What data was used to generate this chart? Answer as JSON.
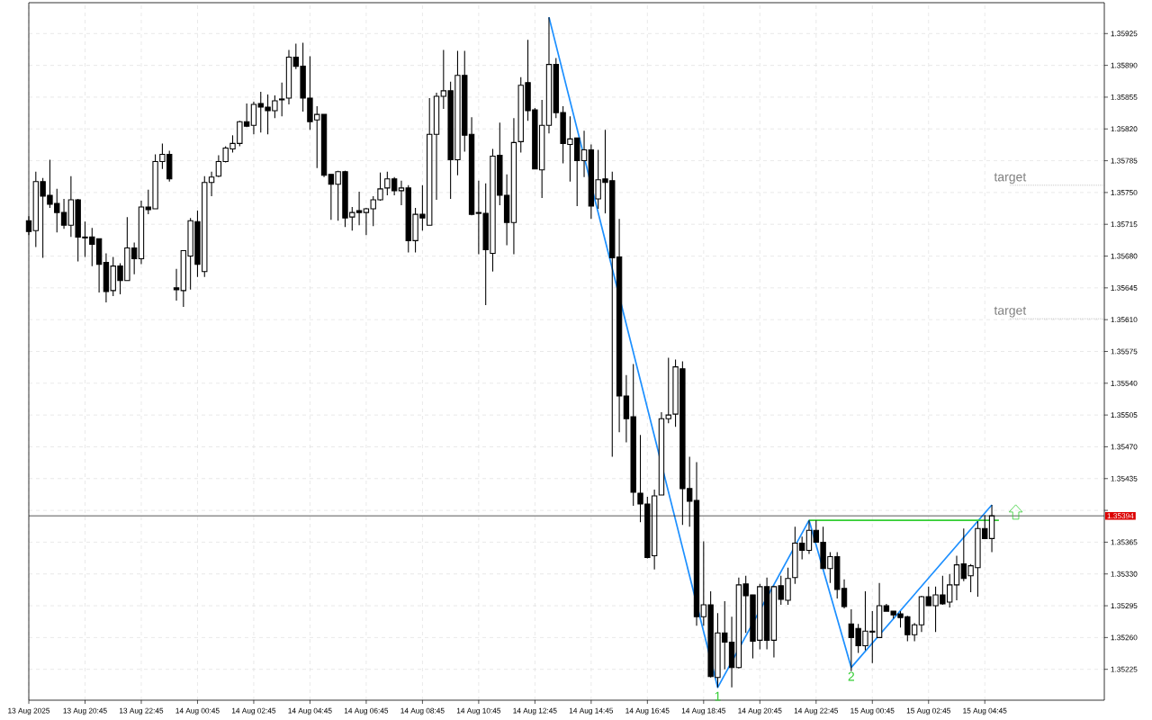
{
  "chart_data": {
    "type": "candlestick",
    "xlim": [
      "2025-08-13T18:45",
      "2025-08-15T09:00"
    ],
    "ylim": [
      1.35191,
      1.35959
    ],
    "grid": true,
    "xticks": [
      {
        "value": "2025-08-13T18:45",
        "label": "13 Aug 2025"
      },
      {
        "value": "2025-08-13T20:45",
        "label": "13 Aug 20:45"
      },
      {
        "value": "2025-08-13T22:45",
        "label": "13 Aug 22:45"
      },
      {
        "value": "2025-08-14T00:45",
        "label": "14 Aug 00:45"
      },
      {
        "value": "2025-08-14T02:45",
        "label": "14 Aug 02:45"
      },
      {
        "value": "2025-08-14T04:45",
        "label": "14 Aug 04:45"
      },
      {
        "value": "2025-08-14T06:45",
        "label": "14 Aug 06:45"
      },
      {
        "value": "2025-08-14T08:45",
        "label": "14 Aug 08:45"
      },
      {
        "value": "2025-08-14T10:45",
        "label": "14 Aug 10:45"
      },
      {
        "value": "2025-08-14T12:45",
        "label": "14 Aug 12:45"
      },
      {
        "value": "2025-08-14T14:45",
        "label": "14 Aug 14:45"
      },
      {
        "value": "2025-08-14T16:45",
        "label": "14 Aug 16:45"
      },
      {
        "value": "2025-08-14T18:45",
        "label": "14 Aug 18:45"
      },
      {
        "value": "2025-08-14T20:45",
        "label": "14 Aug 20:45"
      },
      {
        "value": "2025-08-14T22:45",
        "label": "14 Aug 22:45"
      },
      {
        "value": "2025-08-15T00:45",
        "label": "15 Aug 00:45"
      },
      {
        "value": "2025-08-15T02:45",
        "label": "15 Aug 02:45"
      },
      {
        "value": "2025-08-15T04:45",
        "label": "15 Aug 04:45"
      }
    ],
    "yticks": [
      {
        "value": 1.35925,
        "label": "1.35925"
      },
      {
        "value": 1.3589,
        "label": "1.35890"
      },
      {
        "value": 1.35855,
        "label": "1.35855"
      },
      {
        "value": 1.3582,
        "label": "1.35820"
      },
      {
        "value": 1.35785,
        "label": "1.35785"
      },
      {
        "value": 1.3575,
        "label": "1.35750"
      },
      {
        "value": 1.35715,
        "label": "1.35715"
      },
      {
        "value": 1.3568,
        "label": "1.35680"
      },
      {
        "value": 1.35645,
        "label": "1.35645"
      },
      {
        "value": 1.3561,
        "label": "1.35610"
      },
      {
        "value": 1.35575,
        "label": "1.35575"
      },
      {
        "value": 1.3554,
        "label": "1.35540"
      },
      {
        "value": 1.35505,
        "label": "1.35505"
      },
      {
        "value": 1.3547,
        "label": "1.35470"
      },
      {
        "value": 1.35435,
        "label": "1.35435"
      },
      {
        "value": 1.354,
        "label": null
      },
      {
        "value": 1.35365,
        "label": "1.35365"
      },
      {
        "value": 1.3533,
        "label": "1.35330"
      },
      {
        "value": 1.35295,
        "label": "1.35295"
      },
      {
        "value": 1.3526,
        "label": "1.35260"
      },
      {
        "value": 1.35225,
        "label": "1.35225"
      }
    ],
    "x": [
      "2025-08-13T18:45",
      "2025-08-13T19:00",
      "2025-08-13T19:15",
      "2025-08-13T19:30",
      "2025-08-13T19:45",
      "2025-08-13T20:00",
      "2025-08-13T20:15",
      "2025-08-13T20:30",
      "2025-08-13T20:45",
      "2025-08-13T21:00",
      "2025-08-13T21:15",
      "2025-08-13T21:30",
      "2025-08-13T21:45",
      "2025-08-13T22:00",
      "2025-08-13T22:15",
      "2025-08-13T22:30",
      "2025-08-13T22:45",
      "2025-08-13T23:00",
      "2025-08-13T23:15",
      "2025-08-13T23:30",
      "2025-08-13T23:45",
      "2025-08-14T00:00",
      "2025-08-14T00:15",
      "2025-08-14T00:30",
      "2025-08-14T00:45",
      "2025-08-14T01:00",
      "2025-08-14T01:15",
      "2025-08-14T01:30",
      "2025-08-14T01:45",
      "2025-08-14T02:00",
      "2025-08-14T02:15",
      "2025-08-14T02:30",
      "2025-08-14T02:45",
      "2025-08-14T03:00",
      "2025-08-14T03:15",
      "2025-08-14T03:30",
      "2025-08-14T03:45",
      "2025-08-14T04:00",
      "2025-08-14T04:15",
      "2025-08-14T04:30",
      "2025-08-14T04:45",
      "2025-08-14T05:00",
      "2025-08-14T05:15",
      "2025-08-14T05:30",
      "2025-08-14T05:45",
      "2025-08-14T06:00",
      "2025-08-14T06:15",
      "2025-08-14T06:30",
      "2025-08-14T06:45",
      "2025-08-14T07:00",
      "2025-08-14T07:15",
      "2025-08-14T07:30",
      "2025-08-14T07:45",
      "2025-08-14T08:00",
      "2025-08-14T08:15",
      "2025-08-14T08:30",
      "2025-08-14T08:45",
      "2025-08-14T09:00",
      "2025-08-14T09:15",
      "2025-08-14T09:30",
      "2025-08-14T09:45",
      "2025-08-14T10:00",
      "2025-08-14T10:15",
      "2025-08-14T10:30",
      "2025-08-14T10:45",
      "2025-08-14T11:00",
      "2025-08-14T11:15",
      "2025-08-14T11:30",
      "2025-08-14T11:45",
      "2025-08-14T12:00",
      "2025-08-14T12:15",
      "2025-08-14T12:30",
      "2025-08-14T12:45",
      "2025-08-14T13:00",
      "2025-08-14T13:15",
      "2025-08-14T13:30",
      "2025-08-14T13:45",
      "2025-08-14T14:00",
      "2025-08-14T14:15",
      "2025-08-14T14:30",
      "2025-08-14T14:45",
      "2025-08-14T15:00",
      "2025-08-14T15:15",
      "2025-08-14T15:30",
      "2025-08-14T15:45",
      "2025-08-14T16:00",
      "2025-08-14T16:15",
      "2025-08-14T16:30",
      "2025-08-14T16:45",
      "2025-08-14T17:00",
      "2025-08-14T17:15",
      "2025-08-14T17:30",
      "2025-08-14T17:45",
      "2025-08-14T18:00",
      "2025-08-14T18:15",
      "2025-08-14T18:30",
      "2025-08-14T18:45",
      "2025-08-14T19:00",
      "2025-08-14T19:15",
      "2025-08-14T19:30",
      "2025-08-14T19:45",
      "2025-08-14T20:00",
      "2025-08-14T20:15",
      "2025-08-14T20:30",
      "2025-08-14T20:45",
      "2025-08-14T21:00",
      "2025-08-14T21:15",
      "2025-08-14T21:30",
      "2025-08-14T21:45",
      "2025-08-14T22:00",
      "2025-08-14T22:15",
      "2025-08-14T22:30",
      "2025-08-14T22:45",
      "2025-08-14T23:00",
      "2025-08-14T23:15",
      "2025-08-14T23:30",
      "2025-08-14T23:45",
      "2025-08-15T00:00",
      "2025-08-15T00:15",
      "2025-08-15T00:30",
      "2025-08-15T00:45",
      "2025-08-15T01:00",
      "2025-08-15T01:15",
      "2025-08-15T01:30",
      "2025-08-15T01:45",
      "2025-08-15T02:00",
      "2025-08-15T02:15",
      "2025-08-15T02:30",
      "2025-08-15T02:45",
      "2025-08-15T03:00",
      "2025-08-15T03:15",
      "2025-08-15T03:30",
      "2025-08-15T03:45",
      "2025-08-15T04:00",
      "2025-08-15T04:15",
      "2025-08-15T04:30",
      "2025-08-15T04:45",
      "2025-08-15T05:00"
    ],
    "ohlc": [
      [
        1.35719,
        1.35724,
        1.35703,
        1.35707
      ],
      [
        1.35708,
        1.35773,
        1.3569,
        1.35762
      ],
      [
        1.35762,
        1.35766,
        1.35678,
        1.35746
      ],
      [
        1.35747,
        1.35786,
        1.35733,
        1.35737
      ],
      [
        1.35738,
        1.35754,
        1.35706,
        1.35728
      ],
      [
        1.35728,
        1.35743,
        1.3571,
        1.35714
      ],
      [
        1.35714,
        1.35768,
        1.35701,
        1.35742
      ],
      [
        1.35742,
        1.35743,
        1.35674,
        1.35701
      ],
      [
        1.35701,
        1.35718,
        1.35679,
        1.357
      ],
      [
        1.35701,
        1.35711,
        1.35669,
        1.35693
      ],
      [
        1.35699,
        1.35699,
        1.3564,
        1.35671
      ],
      [
        1.35673,
        1.35683,
        1.35629,
        1.35641
      ],
      [
        1.35642,
        1.35679,
        1.35636,
        1.35669
      ],
      [
        1.35669,
        1.35672,
        1.35638,
        1.35653
      ],
      [
        1.35653,
        1.35723,
        1.35653,
        1.35689
      ],
      [
        1.35689,
        1.35695,
        1.3566,
        1.35677
      ],
      [
        1.35677,
        1.35741,
        1.35671,
        1.35734
      ],
      [
        1.35734,
        1.35753,
        1.35726,
        1.35731
      ],
      [
        1.35732,
        1.35792,
        1.35732,
        1.35784
      ],
      [
        1.35784,
        1.35804,
        1.35776,
        1.35792
      ],
      [
        1.35792,
        1.35796,
        1.35762,
        1.35765
      ],
      [
        1.35645,
        1.35666,
        1.35631,
        1.35643
      ],
      [
        1.35642,
        1.35686,
        1.35624,
        1.35686
      ],
      [
        1.3568,
        1.35722,
        1.35643,
        1.35719
      ],
      [
        1.35718,
        1.3573,
        1.35657,
        1.35671
      ],
      [
        1.35663,
        1.35768,
        1.35657,
        1.35761
      ],
      [
        1.35761,
        1.35773,
        1.35746,
        1.35767
      ],
      [
        1.35768,
        1.35791,
        1.35767,
        1.35784
      ],
      [
        1.35784,
        1.35801,
        1.35783,
        1.35799
      ],
      [
        1.35798,
        1.35813,
        1.35794,
        1.35804
      ],
      [
        1.35804,
        1.35829,
        1.35801,
        1.35828
      ],
      [
        1.35828,
        1.35848,
        1.35822,
        1.35823
      ],
      [
        1.35824,
        1.3585,
        1.35814,
        1.35847
      ],
      [
        1.35848,
        1.35861,
        1.35816,
        1.35844
      ],
      [
        1.35844,
        1.35858,
        1.35814,
        1.3584
      ],
      [
        1.3584,
        1.35857,
        1.35832,
        1.35851
      ],
      [
        1.35853,
        1.35871,
        1.35834,
        1.35852
      ],
      [
        1.35854,
        1.35907,
        1.35847,
        1.35899
      ],
      [
        1.35899,
        1.35914,
        1.35886,
        1.35889
      ],
      [
        1.35889,
        1.35915,
        1.35839,
        1.35854
      ],
      [
        1.35854,
        1.359,
        1.35819,
        1.35828
      ],
      [
        1.3583,
        1.35845,
        1.35777,
        1.35836
      ],
      [
        1.35836,
        1.35836,
        1.35767,
        1.35769
      ],
      [
        1.3577,
        1.3577,
        1.3572,
        1.35759
      ],
      [
        1.35759,
        1.35774,
        1.35719,
        1.35773
      ],
      [
        1.35773,
        1.35774,
        1.35712,
        1.35722
      ],
      [
        1.35723,
        1.35734,
        1.35708,
        1.35728
      ],
      [
        1.3573,
        1.35751,
        1.35714,
        1.35728
      ],
      [
        1.35728,
        1.35733,
        1.35703,
        1.35732
      ],
      [
        1.35732,
        1.35746,
        1.35713,
        1.35742
      ],
      [
        1.35742,
        1.35772,
        1.35741,
        1.35754
      ],
      [
        1.35755,
        1.35773,
        1.35747,
        1.35765
      ],
      [
        1.35765,
        1.35767,
        1.35747,
        1.35752
      ],
      [
        1.35752,
        1.35763,
        1.35736,
        1.35755
      ],
      [
        1.35755,
        1.35758,
        1.35684,
        1.35697
      ],
      [
        1.35697,
        1.35733,
        1.35684,
        1.35726
      ],
      [
        1.35726,
        1.35758,
        1.35708,
        1.35722
      ],
      [
        1.35714,
        1.35854,
        1.35714,
        1.35814
      ],
      [
        1.35814,
        1.3586,
        1.35742,
        1.35856
      ],
      [
        1.35856,
        1.35907,
        1.35842,
        1.35862
      ],
      [
        1.35862,
        1.35872,
        1.35743,
        1.35786
      ],
      [
        1.35786,
        1.35906,
        1.35769,
        1.35879
      ],
      [
        1.35879,
        1.35906,
        1.35795,
        1.35813
      ],
      [
        1.35814,
        1.35833,
        1.35725,
        1.35726
      ],
      [
        1.35728,
        1.35763,
        1.35682,
        1.35727
      ],
      [
        1.35727,
        1.3576,
        1.35626,
        1.35687
      ],
      [
        1.35683,
        1.35798,
        1.35663,
        1.3579
      ],
      [
        1.35791,
        1.35827,
        1.35736,
        1.35747
      ],
      [
        1.35747,
        1.3577,
        1.35692,
        1.35717
      ],
      [
        1.35717,
        1.35832,
        1.35682,
        1.35805
      ],
      [
        1.35806,
        1.35877,
        1.35794,
        1.35868
      ],
      [
        1.35871,
        1.35918,
        1.35829,
        1.3584
      ],
      [
        1.35841,
        1.35843,
        1.35776,
        1.35776
      ],
      [
        1.35775,
        1.35852,
        1.35744,
        1.35824
      ],
      [
        1.35824,
        1.35943,
        1.35815,
        1.35891
      ],
      [
        1.35891,
        1.35898,
        1.35832,
        1.35838
      ],
      [
        1.35838,
        1.35845,
        1.35782,
        1.35804
      ],
      [
        1.35803,
        1.35834,
        1.35762,
        1.35809
      ],
      [
        1.3581,
        1.3581,
        1.35735,
        1.35785
      ],
      [
        1.35785,
        1.35818,
        1.35767,
        1.35797
      ],
      [
        1.35797,
        1.35803,
        1.35721,
        1.35735
      ],
      [
        1.35743,
        1.35797,
        1.35732,
        1.35764
      ],
      [
        1.35765,
        1.35819,
        1.35727,
        1.35761
      ],
      [
        1.35763,
        1.35773,
        1.35459,
        1.35678
      ],
      [
        1.35679,
        1.35721,
        1.35486,
        1.35526
      ],
      [
        1.35526,
        1.35549,
        1.35475,
        1.35501
      ],
      [
        1.35503,
        1.35561,
        1.35405,
        1.3542
      ],
      [
        1.35419,
        1.35483,
        1.35387,
        1.35407
      ],
      [
        1.35407,
        1.35415,
        1.35347,
        1.35348
      ],
      [
        1.3535,
        1.35423,
        1.35335,
        1.35416
      ],
      [
        1.35417,
        1.35508,
        1.35417,
        1.35501
      ],
      [
        1.35501,
        1.35568,
        1.35496,
        1.35505
      ],
      [
        1.35506,
        1.35566,
        1.35492,
        1.35558
      ],
      [
        1.35556,
        1.35564,
        1.35384,
        1.35424
      ],
      [
        1.35424,
        1.35459,
        1.35382,
        1.3541
      ],
      [
        1.35411,
        1.35453,
        1.35273,
        1.35283
      ],
      [
        1.35283,
        1.35366,
        1.35273,
        1.35296
      ],
      [
        1.35296,
        1.35311,
        1.35216,
        1.35217
      ],
      [
        1.35216,
        1.35287,
        1.35205,
        1.35265
      ],
      [
        1.35265,
        1.353,
        1.35225,
        1.35255
      ],
      [
        1.35255,
        1.35283,
        1.35205,
        1.35227
      ],
      [
        1.35227,
        1.35326,
        1.35226,
        1.35318
      ],
      [
        1.35319,
        1.35328,
        1.35265,
        1.35306
      ],
      [
        1.35307,
        1.35307,
        1.35237,
        1.35256
      ],
      [
        1.35257,
        1.35319,
        1.35247,
        1.35316
      ],
      [
        1.35316,
        1.35326,
        1.35247,
        1.35257
      ],
      [
        1.35257,
        1.35317,
        1.35238,
        1.35316
      ],
      [
        1.35317,
        1.35328,
        1.35296,
        1.35302
      ],
      [
        1.35301,
        1.35337,
        1.35296,
        1.35325
      ],
      [
        1.35326,
        1.35382,
        1.35319,
        1.35364
      ],
      [
        1.35364,
        1.35371,
        1.35346,
        1.35356
      ],
      [
        1.35356,
        1.35389,
        1.35352,
        1.35378
      ],
      [
        1.35378,
        1.35389,
        1.35365,
        1.35365
      ],
      [
        1.35365,
        1.35382,
        1.35336,
        1.35336
      ],
      [
        1.35336,
        1.35354,
        1.3532,
        1.35349
      ],
      [
        1.35349,
        1.35354,
        1.35303,
        1.35313
      ],
      [
        1.35314,
        1.35324,
        1.35292,
        1.35294
      ],
      [
        1.35275,
        1.35291,
        1.35223,
        1.3526
      ],
      [
        1.3527,
        1.35275,
        1.35243,
        1.35251
      ],
      [
        1.35251,
        1.35311,
        1.35246,
        1.35267
      ],
      [
        1.35267,
        1.35289,
        1.35232,
        1.35266
      ],
      [
        1.3526,
        1.3532,
        1.3526,
        1.35295
      ],
      [
        1.35295,
        1.35297,
        1.35289,
        1.35289
      ],
      [
        1.35289,
        1.35289,
        1.35281,
        1.35285
      ],
      [
        1.35286,
        1.35289,
        1.35271,
        1.35282
      ],
      [
        1.35283,
        1.35284,
        1.35256,
        1.35263
      ],
      [
        1.35263,
        1.35276,
        1.35256,
        1.35274
      ],
      [
        1.35274,
        1.35306,
        1.35266,
        1.35305
      ],
      [
        1.35305,
        1.35316,
        1.35295,
        1.35295
      ],
      [
        1.35295,
        1.35316,
        1.35266,
        1.35307
      ],
      [
        1.35307,
        1.35328,
        1.35296,
        1.35297
      ],
      [
        1.35299,
        1.3533,
        1.35293,
        1.35318
      ],
      [
        1.35318,
        1.3535,
        1.35301,
        1.3534
      ],
      [
        1.35341,
        1.3538,
        1.35322,
        1.35325
      ],
      [
        1.35328,
        1.35341,
        1.3531,
        1.35339
      ],
      [
        1.35337,
        1.35388,
        1.35305,
        1.3538
      ],
      [
        1.3538,
        1.35395,
        1.35369,
        1.35369
      ],
      [
        1.35369,
        1.35406,
        1.35354,
        1.35394
      ]
    ],
    "series": [
      {
        "type": "line",
        "color": "#1e90ff",
        "x": [
          "2025-08-14T13:15",
          "2025-08-14T19:15",
          "2025-08-14T22:30",
          "2025-08-15T00:00",
          "2025-08-15T05:00"
        ],
        "values": [
          1.35943,
          1.35205,
          1.35389,
          1.35227,
          1.35406
        ]
      },
      {
        "type": "line",
        "color": "#32cd32",
        "x": [
          "2025-08-14T22:30",
          "2025-08-15T05:15"
        ],
        "values": [
          1.35389,
          1.35389
        ]
      }
    ],
    "ref_lines": [
      {
        "axis": "y",
        "value": 1.35394,
        "label": "1.35394",
        "color": "#000000",
        "line_style": "solid"
      },
      {
        "axis": "y",
        "value": 1.35758,
        "label": "target",
        "color": "#808080",
        "line_style": "dotted"
      },
      {
        "axis": "y",
        "value": 1.35611,
        "label": "target",
        "color": "#808080",
        "line_style": "dotted"
      }
    ],
    "annotations": [
      {
        "text": "1",
        "x": "2025-08-14T19:15",
        "y": 1.35205
      },
      {
        "text": "2",
        "x": "2025-08-15T00:00",
        "y": 1.35227
      }
    ]
  }
}
